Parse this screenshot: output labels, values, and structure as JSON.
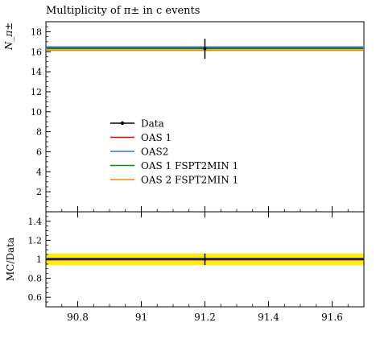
{
  "chart_data": [
    {
      "type": "line",
      "title": "Multiplicity of π± in c events",
      "ylabel": "N_π±",
      "xlim": [
        90.7,
        91.7
      ],
      "ylim": [
        0,
        19
      ],
      "yticks": [
        2,
        4,
        6,
        8,
        10,
        12,
        14,
        16,
        18
      ],
      "legend_position": "center-left",
      "data_points": [
        {
          "label": "Data",
          "x": 91.2,
          "y": 16.3,
          "yerr": 1.0,
          "color": "#000000"
        }
      ],
      "series": [
        {
          "name": "OAS 1",
          "color": "#ee0000",
          "y": 16.45
        },
        {
          "name": "OAS2",
          "color": "#3366ff",
          "y": 16.45
        },
        {
          "name": "OAS 1 FSPT2MIN 1",
          "color": "#118811",
          "y": 16.33
        },
        {
          "name": "OAS 2 FSPT2MIN 1",
          "color": "#ff8800",
          "y": 16.15
        }
      ]
    },
    {
      "type": "line",
      "ylabel": "MC/Data",
      "xlim": [
        90.7,
        91.7
      ],
      "ylim": [
        0.5,
        1.5
      ],
      "yticks": [
        0.6,
        0.8,
        1,
        1.2,
        1.4
      ],
      "xticks": [
        90.8,
        91,
        91.2,
        91.4,
        91.6
      ],
      "xtick_labels": [
        "90.8",
        "91",
        "91.2",
        "91.4",
        "91.6"
      ],
      "data_band": {
        "low": 0.94,
        "high": 1.06,
        "color": "#ffee00"
      },
      "data_points": [
        {
          "x": 91.2,
          "y": 1.0,
          "yerr": 0.06
        }
      ],
      "series": [
        {
          "name": "OAS 1",
          "color": "#ee0000",
          "y": 1.01
        },
        {
          "name": "OAS2",
          "color": "#3366ff",
          "y": 1.01
        },
        {
          "name": "OAS 1 FSPT2MIN 1",
          "color": "#118811",
          "y": 1.0
        },
        {
          "name": "OAS 2 FSPT2MIN 1",
          "color": "#ff8800",
          "y": 0.99
        }
      ]
    }
  ]
}
